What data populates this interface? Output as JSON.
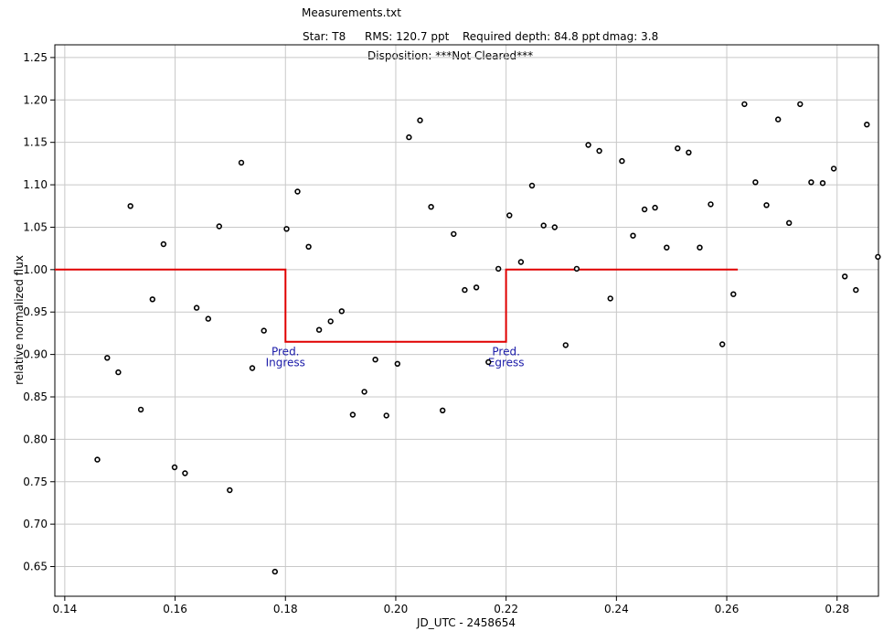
{
  "header": {
    "file": "Measurements.txt",
    "star": "Star: T8",
    "rms": "RMS: 120.7 ppt",
    "depth": "Required depth: 84.8 ppt",
    "dmag": "dmag: 3.8",
    "disposition": "Disposition: ***Not Cleared***"
  },
  "chart_data": {
    "type": "scatter",
    "xlabel": "JD_UTC - 2458654",
    "ylabel": "relative normalized flux",
    "xlim": [
      0.1382,
      0.2875
    ],
    "ylim": [
      0.615,
      1.265
    ],
    "xticks": [
      {
        "value": 0.14,
        "label": "0.14"
      },
      {
        "value": 0.16,
        "label": "0.16"
      },
      {
        "value": 0.18,
        "label": "0.18"
      },
      {
        "value": 0.2,
        "label": "0.20"
      },
      {
        "value": 0.22,
        "label": "0.22"
      },
      {
        "value": 0.24,
        "label": "0.24"
      },
      {
        "value": 0.26,
        "label": "0.26"
      },
      {
        "value": 0.28,
        "label": "0.28"
      }
    ],
    "yticks": [
      {
        "value": 0.65,
        "label": "0.65"
      },
      {
        "value": 0.7,
        "label": "0.70"
      },
      {
        "value": 0.75,
        "label": "0.75"
      },
      {
        "value": 0.8,
        "label": "0.80"
      },
      {
        "value": 0.85,
        "label": "0.85"
      },
      {
        "value": 0.9,
        "label": "0.90"
      },
      {
        "value": 0.95,
        "label": "0.95"
      },
      {
        "value": 1.0,
        "label": "1.00"
      },
      {
        "value": 1.05,
        "label": "1.05"
      },
      {
        "value": 1.1,
        "label": "1.10"
      },
      {
        "value": 1.15,
        "label": "1.15"
      },
      {
        "value": 1.2,
        "label": "1.20"
      },
      {
        "value": 1.25,
        "label": "1.25"
      }
    ],
    "grid": true,
    "points": [
      {
        "x": 0.1459,
        "y": 0.776
      },
      {
        "x": 0.1477,
        "y": 0.896
      },
      {
        "x": 0.1497,
        "y": 0.879
      },
      {
        "x": 0.1519,
        "y": 1.075
      },
      {
        "x": 0.1538,
        "y": 0.835
      },
      {
        "x": 0.1559,
        "y": 0.965
      },
      {
        "x": 0.1579,
        "y": 1.03
      },
      {
        "x": 0.1599,
        "y": 0.767
      },
      {
        "x": 0.1618,
        "y": 0.76
      },
      {
        "x": 0.1639,
        "y": 0.955
      },
      {
        "x": 0.166,
        "y": 0.942
      },
      {
        "x": 0.168,
        "y": 1.051
      },
      {
        "x": 0.1699,
        "y": 0.74
      },
      {
        "x": 0.172,
        "y": 1.126
      },
      {
        "x": 0.174,
        "y": 0.884
      },
      {
        "x": 0.1761,
        "y": 0.928
      },
      {
        "x": 0.1781,
        "y": 0.644
      },
      {
        "x": 0.1802,
        "y": 1.048
      },
      {
        "x": 0.1822,
        "y": 1.092
      },
      {
        "x": 0.1842,
        "y": 1.027
      },
      {
        "x": 0.1861,
        "y": 0.929
      },
      {
        "x": 0.1882,
        "y": 0.939
      },
      {
        "x": 0.1902,
        "y": 0.951
      },
      {
        "x": 0.1922,
        "y": 0.829
      },
      {
        "x": 0.1943,
        "y": 0.856
      },
      {
        "x": 0.1963,
        "y": 0.894
      },
      {
        "x": 0.1983,
        "y": 0.828
      },
      {
        "x": 0.2003,
        "y": 0.889
      },
      {
        "x": 0.2024,
        "y": 1.156
      },
      {
        "x": 0.2044,
        "y": 1.176
      },
      {
        "x": 0.2064,
        "y": 1.074
      },
      {
        "x": 0.2085,
        "y": 0.834
      },
      {
        "x": 0.2105,
        "y": 1.042
      },
      {
        "x": 0.2125,
        "y": 0.976
      },
      {
        "x": 0.2146,
        "y": 0.979
      },
      {
        "x": 0.2168,
        "y": 0.891
      },
      {
        "x": 0.2186,
        "y": 1.001
      },
      {
        "x": 0.2206,
        "y": 1.064
      },
      {
        "x": 0.2227,
        "y": 1.009
      },
      {
        "x": 0.2247,
        "y": 1.099
      },
      {
        "x": 0.2268,
        "y": 1.052
      },
      {
        "x": 0.2288,
        "y": 1.05
      },
      {
        "x": 0.2308,
        "y": 0.911
      },
      {
        "x": 0.2328,
        "y": 1.001
      },
      {
        "x": 0.2349,
        "y": 1.147
      },
      {
        "x": 0.2369,
        "y": 1.14
      },
      {
        "x": 0.2389,
        "y": 0.966
      },
      {
        "x": 0.241,
        "y": 1.128
      },
      {
        "x": 0.243,
        "y": 1.04
      },
      {
        "x": 0.2451,
        "y": 1.071
      },
      {
        "x": 0.247,
        "y": 1.073
      },
      {
        "x": 0.2491,
        "y": 1.026
      },
      {
        "x": 0.2511,
        "y": 1.143
      },
      {
        "x": 0.2531,
        "y": 1.138
      },
      {
        "x": 0.2551,
        "y": 1.026
      },
      {
        "x": 0.2571,
        "y": 1.077
      },
      {
        "x": 0.2592,
        "y": 0.912
      },
      {
        "x": 0.2612,
        "y": 0.971
      },
      {
        "x": 0.2632,
        "y": 1.195
      },
      {
        "x": 0.2652,
        "y": 1.103
      },
      {
        "x": 0.2672,
        "y": 1.076
      },
      {
        "x": 0.2693,
        "y": 1.177
      },
      {
        "x": 0.2713,
        "y": 1.055
      },
      {
        "x": 0.2733,
        "y": 1.195
      },
      {
        "x": 0.2753,
        "y": 1.103
      },
      {
        "x": 0.2774,
        "y": 1.102
      },
      {
        "x": 0.2794,
        "y": 1.119
      },
      {
        "x": 0.2814,
        "y": 0.992
      },
      {
        "x": 0.2834,
        "y": 0.976
      },
      {
        "x": 0.2854,
        "y": 1.171
      },
      {
        "x": 0.2874,
        "y": 1.015
      }
    ],
    "model": {
      "color": "#e00000",
      "x": [
        0.1382,
        0.18,
        0.18,
        0.22,
        0.22,
        0.262
      ],
      "y": [
        1.0,
        1.0,
        0.915,
        0.915,
        1.0,
        1.0
      ]
    },
    "annotations": [
      {
        "id": "ingress",
        "x": 0.18,
        "lines": [
          "Pred.",
          "Ingress"
        ],
        "color": "#1a1aa8"
      },
      {
        "id": "egress",
        "x": 0.22,
        "lines": [
          "Pred.",
          "Egress"
        ],
        "color": "#1a1aa8"
      }
    ]
  }
}
